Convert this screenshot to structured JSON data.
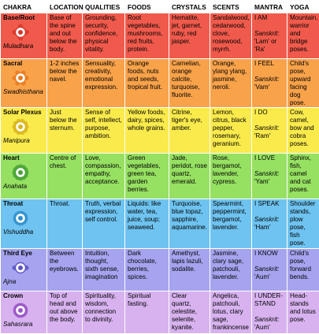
{
  "headers": {
    "chakra": "CHAKRA",
    "location": "LOCATION",
    "qualities": "QUALITIES",
    "foods": "FOODS",
    "crystals": "CRYSTALS",
    "scents": "SCENTS",
    "mantra": "MANTRA",
    "yoga": "YOGA"
  },
  "sanskrit_label": "Sanskrit:",
  "rows": [
    {
      "name": "Base/Root",
      "sanskrit": "Muladhara",
      "color": "#f05a4c",
      "icon": "root-chakra-icon",
      "location": "Base of the spine and out below the body.",
      "qualities": "Grounding, security, confidence, physical vitality.",
      "foods": "Root vegetables, mushrooms, red fruits, protein.",
      "crystals": "Hematite, jet, garnet, ruby, red jasper.",
      "scents": "Sandalwood, cedarwood, clove, rosewood, myrrh.",
      "mantra_en": "I AM",
      "mantra_sk": "'Lam' or 'Ra'",
      "yoga": "Mountain, warrior and bridge poses."
    },
    {
      "name": "Sacral",
      "sanskrit": "Swadhisthana",
      "color": "#f8a24a",
      "icon": "sacral-chakra-icon",
      "location": "1-2 inches below the navel.",
      "qualities": "Sensuality, creativity, emotional expression.",
      "foods": "Orange foods, nuts and seeds, tropical fruit.",
      "crystals": "Carnelian, orange calcite, turquoise, fluorite.",
      "scents": "Orange, ylang ylang, jasmine, neroli.",
      "mantra_en": "I FEEL",
      "mantra_sk": "'Vam'",
      "yoga": "Child's pose, upward facing dog pose."
    },
    {
      "name": "Solar Plexus",
      "sanskrit": "Manipura",
      "color": "#faea4c",
      "icon": "solar-plexus-chakra-icon",
      "location": "Just below the sternum.",
      "qualities": "Sense of self, intellect, purpose, ambition.",
      "foods": "Yellow foods, dairy, spices, whole grains.",
      "crystals": "Citrine, tiger's eye, amber.",
      "scents": "Lemon, citrus, black pepper, rosemary, geranium.",
      "mantra_en": "I DO",
      "mantra_sk": "'Ram'",
      "yoga": "Cow, camel, bow and cobra poses."
    },
    {
      "name": "Heart",
      "sanskrit": "Anahata",
      "color": "#96e062",
      "icon": "heart-chakra-icon",
      "location": "Centre of chest.",
      "qualities": "Love, compassion, empathy, acceptance.",
      "foods": "Green vegetables, green tea, garden berries.",
      "crystals": "Jade, peridot, rose quartz, emerald.",
      "scents": "Rose, bergamot, lavender, cypress.",
      "mantra_en": "I LOVE",
      "mantra_sk": "'Yam'",
      "yoga": "Sphinx, fish, camel and cat poses."
    },
    {
      "name": "Throat",
      "sanskrit": "Vishuddha",
      "color": "#6ec3f0",
      "icon": "throat-chakra-icon",
      "location": "Throat.",
      "qualities": "Truth, verbal expression, self control.",
      "foods": "Liquids: like water, tea, juice, soup; seaweed.",
      "crystals": "Turquoise, blue topaz, sapphire, aquamarine.",
      "scents": "Spearmint, peppermint, bergamot, lavender.",
      "mantra_en": "I SPEAK",
      "mantra_sk": "'Ham'",
      "yoga": "Shoulder stands, plow pose, fish pose."
    },
    {
      "name": "Third Eye",
      "sanskrit": "Ajna",
      "color": "#a6a4ef",
      "icon": "third-eye-chakra-icon",
      "location": "Between the eyebrows.",
      "qualities": "Intuition, thought, sixth sense, imagination",
      "foods": "Dark chocolate, berries, spices.",
      "crystals": "Amethyst, lapis lazuli, sodalite.",
      "scents": "Jasmine, clary sage, patchouli, lavender.",
      "mantra_en": "I KNOW",
      "mantra_sk": "'Aum'",
      "yoga": "Child's pose, forward bends."
    },
    {
      "name": "Crown",
      "sanskrit": "Sahasrara",
      "color": "#d7b2ef",
      "icon": "crown-chakra-icon",
      "location": "Top of head and out above the body.",
      "qualities": "Spirituality, wisdom, connection to divinity.",
      "foods": "Spiritual fasting.",
      "crystals": "Clear quartz, celestite, selenite, kyanite.",
      "scents": "Angelica, patchouli, lotus, clary sage, frankincense",
      "mantra_en": "I UNDER-STAND",
      "mantra_sk": "'Aum'",
      "yoga": "Head-stands and lotus pose."
    }
  ]
}
